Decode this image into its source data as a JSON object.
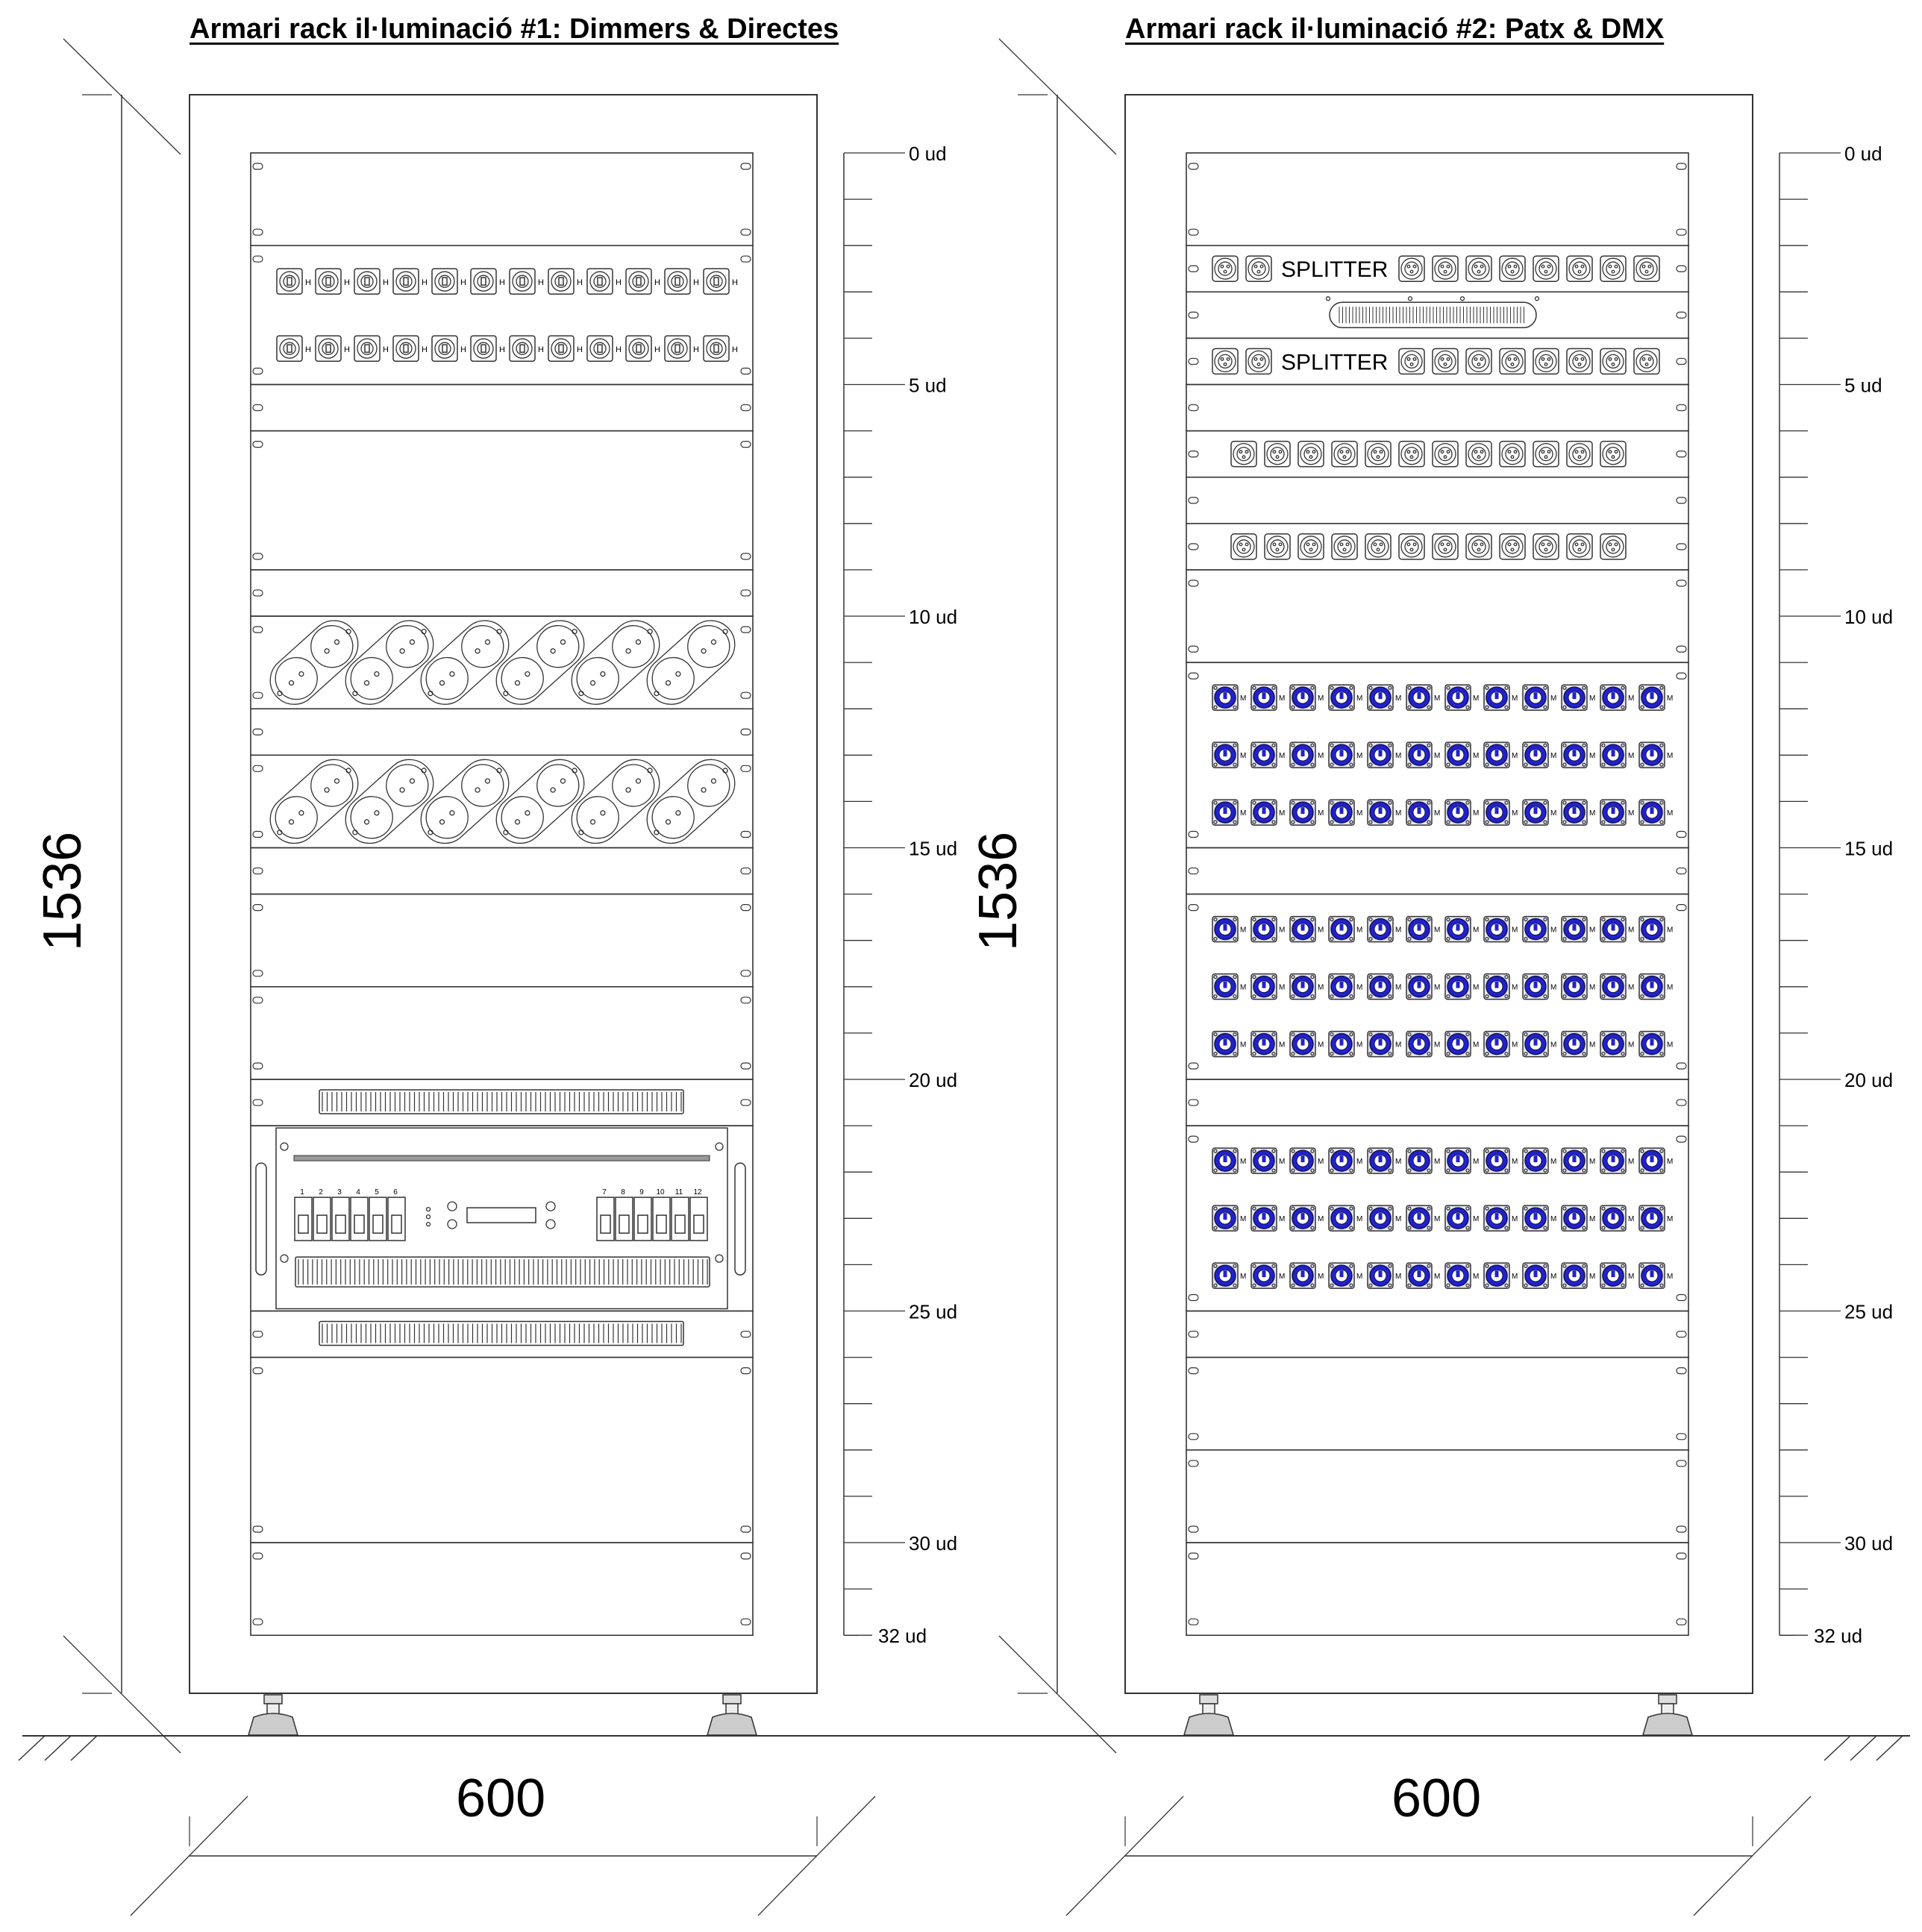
{
  "racks": [
    {
      "title": "Armari rack il·luminació #1: Dimmers & Directes",
      "width_label": "600",
      "height_label": "1536",
      "scale_labels": [
        "0 ud",
        "5 ud",
        "10 ud",
        "15 ud",
        "20 ud",
        "25 ud",
        "30 ud",
        "32 ud"
      ]
    },
    {
      "title": "Armari rack il·luminació #2: Patx & DMX",
      "width_label": "600",
      "height_label": "1536",
      "scale_labels": [
        "0 ud",
        "5 ud",
        "10 ud",
        "15 ud",
        "20 ud",
        "25 ud",
        "30 ud",
        "32 ud"
      ],
      "splitter_label": "SPLITTER"
    }
  ],
  "dimmer": {
    "channels_left": [
      "1",
      "2",
      "3",
      "4",
      "5",
      "6"
    ],
    "channels_right": [
      "7",
      "8",
      "9",
      "10",
      "11",
      "12"
    ]
  },
  "colors": {
    "line": "#333333",
    "connector_blue": "#2222cc"
  }
}
